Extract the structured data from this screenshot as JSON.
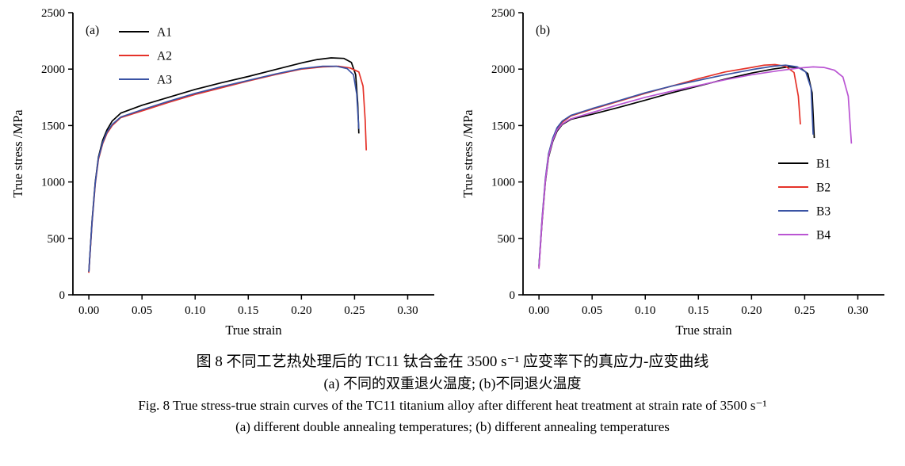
{
  "captions": {
    "zh_title": "图 8  不同工艺热处理后的 TC11 钛合金在 3500 s⁻¹ 应变率下的真应力-应变曲线",
    "zh_sub": "(a) 不同的双重退火温度; (b)不同退火温度",
    "en_title": "Fig. 8  True stress-true strain curves of the TC11 titanium alloy after different heat treatment at strain rate of 3500 s⁻¹",
    "en_sub": "(a) different double annealing temperatures; (b) different annealing temperatures"
  },
  "chart_data": [
    {
      "type": "line",
      "panel": "(a)",
      "title": "",
      "xlabel": "True strain",
      "ylabel": "True stress /MPa",
      "xlim": [
        -0.015,
        0.325
      ],
      "ylim": [
        0,
        2500
      ],
      "xticks": [
        0.0,
        0.05,
        0.1,
        0.15,
        0.2,
        0.25,
        0.3
      ],
      "xtick_labels": [
        "0.00",
        "0.05",
        "0.10",
        "0.15",
        "0.20",
        "0.25",
        "0.30"
      ],
      "yticks": [
        0,
        500,
        1000,
        1500,
        2000,
        2500
      ],
      "ytick_labels": [
        "0",
        "500",
        "1000",
        "1500",
        "2000",
        "2500"
      ],
      "grid": false,
      "legend_position": "top-left",
      "series": [
        {
          "name": "A1",
          "color": "#000000",
          "points": [
            [
              0.0,
              200
            ],
            [
              0.003,
              650
            ],
            [
              0.006,
              1000
            ],
            [
              0.009,
              1220
            ],
            [
              0.013,
              1370
            ],
            [
              0.017,
              1460
            ],
            [
              0.022,
              1540
            ],
            [
              0.03,
              1610
            ],
            [
              0.05,
              1680
            ],
            [
              0.075,
              1750
            ],
            [
              0.1,
              1820
            ],
            [
              0.125,
              1880
            ],
            [
              0.15,
              1935
            ],
            [
              0.175,
              1995
            ],
            [
              0.2,
              2055
            ],
            [
              0.215,
              2085
            ],
            [
              0.228,
              2100
            ],
            [
              0.24,
              2095
            ],
            [
              0.247,
              2060
            ],
            [
              0.251,
              1950
            ],
            [
              0.253,
              1700
            ],
            [
              0.254,
              1430
            ]
          ]
        },
        {
          "name": "A2",
          "color": "#e53229",
          "points": [
            [
              0.0,
              195
            ],
            [
              0.003,
              630
            ],
            [
              0.006,
              980
            ],
            [
              0.009,
              1200
            ],
            [
              0.013,
              1340
            ],
            [
              0.017,
              1430
            ],
            [
              0.022,
              1500
            ],
            [
              0.03,
              1570
            ],
            [
              0.05,
              1630
            ],
            [
              0.075,
              1705
            ],
            [
              0.1,
              1775
            ],
            [
              0.125,
              1835
            ],
            [
              0.15,
              1895
            ],
            [
              0.175,
              1950
            ],
            [
              0.2,
              2000
            ],
            [
              0.22,
              2020
            ],
            [
              0.235,
              2025
            ],
            [
              0.246,
              2010
            ],
            [
              0.254,
              1975
            ],
            [
              0.258,
              1850
            ],
            [
              0.26,
              1550
            ],
            [
              0.261,
              1280
            ]
          ]
        },
        {
          "name": "A3",
          "color": "#3a53a4",
          "points": [
            [
              0.0,
              205
            ],
            [
              0.003,
              640
            ],
            [
              0.006,
              990
            ],
            [
              0.009,
              1210
            ],
            [
              0.013,
              1350
            ],
            [
              0.017,
              1440
            ],
            [
              0.022,
              1510
            ],
            [
              0.03,
              1575
            ],
            [
              0.05,
              1640
            ],
            [
              0.075,
              1715
            ],
            [
              0.1,
              1785
            ],
            [
              0.125,
              1845
            ],
            [
              0.15,
              1900
            ],
            [
              0.175,
              1955
            ],
            [
              0.2,
              2005
            ],
            [
              0.22,
              2025
            ],
            [
              0.233,
              2025
            ],
            [
              0.243,
              2005
            ],
            [
              0.249,
              1950
            ],
            [
              0.252,
              1780
            ],
            [
              0.254,
              1470
            ]
          ]
        }
      ]
    },
    {
      "type": "line",
      "panel": "(b)",
      "title": "",
      "xlabel": "True strain",
      "ylabel": "True stress /MPa",
      "xlim": [
        -0.015,
        0.325
      ],
      "ylim": [
        0,
        2500
      ],
      "xticks": [
        0.0,
        0.05,
        0.1,
        0.15,
        0.2,
        0.25,
        0.3
      ],
      "xtick_labels": [
        "0.00",
        "0.05",
        "0.10",
        "0.15",
        "0.20",
        "0.25",
        "0.30"
      ],
      "yticks": [
        0,
        500,
        1000,
        1500,
        2000,
        2500
      ],
      "ytick_labels": [
        "0",
        "500",
        "1000",
        "1500",
        "2000",
        "2500"
      ],
      "grid": false,
      "legend_position": "right",
      "series": [
        {
          "name": "B1",
          "color": "#000000",
          "points": [
            [
              0.0,
              250
            ],
            [
              0.003,
              650
            ],
            [
              0.006,
              1000
            ],
            [
              0.009,
              1220
            ],
            [
              0.013,
              1360
            ],
            [
              0.017,
              1450
            ],
            [
              0.022,
              1510
            ],
            [
              0.03,
              1555
            ],
            [
              0.05,
              1600
            ],
            [
              0.075,
              1660
            ],
            [
              0.1,
              1725
            ],
            [
              0.125,
              1790
            ],
            [
              0.15,
              1850
            ],
            [
              0.175,
              1910
            ],
            [
              0.2,
              1965
            ],
            [
              0.22,
              2000
            ],
            [
              0.235,
              2020
            ],
            [
              0.246,
              2010
            ],
            [
              0.253,
              1960
            ],
            [
              0.257,
              1790
            ],
            [
              0.259,
              1390
            ]
          ]
        },
        {
          "name": "B2",
          "color": "#e53229",
          "points": [
            [
              0.0,
              240
            ],
            [
              0.003,
              670
            ],
            [
              0.006,
              1020
            ],
            [
              0.009,
              1240
            ],
            [
              0.013,
              1380
            ],
            [
              0.017,
              1470
            ],
            [
              0.022,
              1530
            ],
            [
              0.03,
              1585
            ],
            [
              0.05,
              1645
            ],
            [
              0.075,
              1715
            ],
            [
              0.1,
              1785
            ],
            [
              0.125,
              1850
            ],
            [
              0.15,
              1915
            ],
            [
              0.175,
              1975
            ],
            [
              0.2,
              2015
            ],
            [
              0.212,
              2035
            ],
            [
              0.222,
              2040
            ],
            [
              0.232,
              2025
            ],
            [
              0.24,
              1970
            ],
            [
              0.244,
              1760
            ],
            [
              0.246,
              1510
            ]
          ]
        },
        {
          "name": "B3",
          "color": "#3a53a4",
          "points": [
            [
              0.0,
              260
            ],
            [
              0.003,
              680
            ],
            [
              0.006,
              1030
            ],
            [
              0.009,
              1250
            ],
            [
              0.013,
              1390
            ],
            [
              0.017,
              1480
            ],
            [
              0.022,
              1540
            ],
            [
              0.03,
              1590
            ],
            [
              0.05,
              1650
            ],
            [
              0.075,
              1720
            ],
            [
              0.1,
              1790
            ],
            [
              0.125,
              1850
            ],
            [
              0.15,
              1900
            ],
            [
              0.175,
              1950
            ],
            [
              0.2,
              1995
            ],
            [
              0.22,
              2025
            ],
            [
              0.232,
              2035
            ],
            [
              0.243,
              2020
            ],
            [
              0.251,
              1975
            ],
            [
              0.256,
              1830
            ],
            [
              0.258,
              1420
            ]
          ]
        },
        {
          "name": "B4",
          "color": "#ba55d3",
          "points": [
            [
              0.0,
              230
            ],
            [
              0.003,
              660
            ],
            [
              0.006,
              1010
            ],
            [
              0.009,
              1230
            ],
            [
              0.013,
              1370
            ],
            [
              0.017,
              1460
            ],
            [
              0.022,
              1515
            ],
            [
              0.03,
              1560
            ],
            [
              0.05,
              1615
            ],
            [
              0.075,
              1685
            ],
            [
              0.1,
              1750
            ],
            [
              0.125,
              1805
            ],
            [
              0.15,
              1855
            ],
            [
              0.175,
              1905
            ],
            [
              0.2,
              1950
            ],
            [
              0.225,
              1985
            ],
            [
              0.245,
              2010
            ],
            [
              0.258,
              2020
            ],
            [
              0.268,
              2015
            ],
            [
              0.278,
              1990
            ],
            [
              0.286,
              1930
            ],
            [
              0.291,
              1760
            ],
            [
              0.294,
              1340
            ]
          ]
        }
      ]
    }
  ]
}
